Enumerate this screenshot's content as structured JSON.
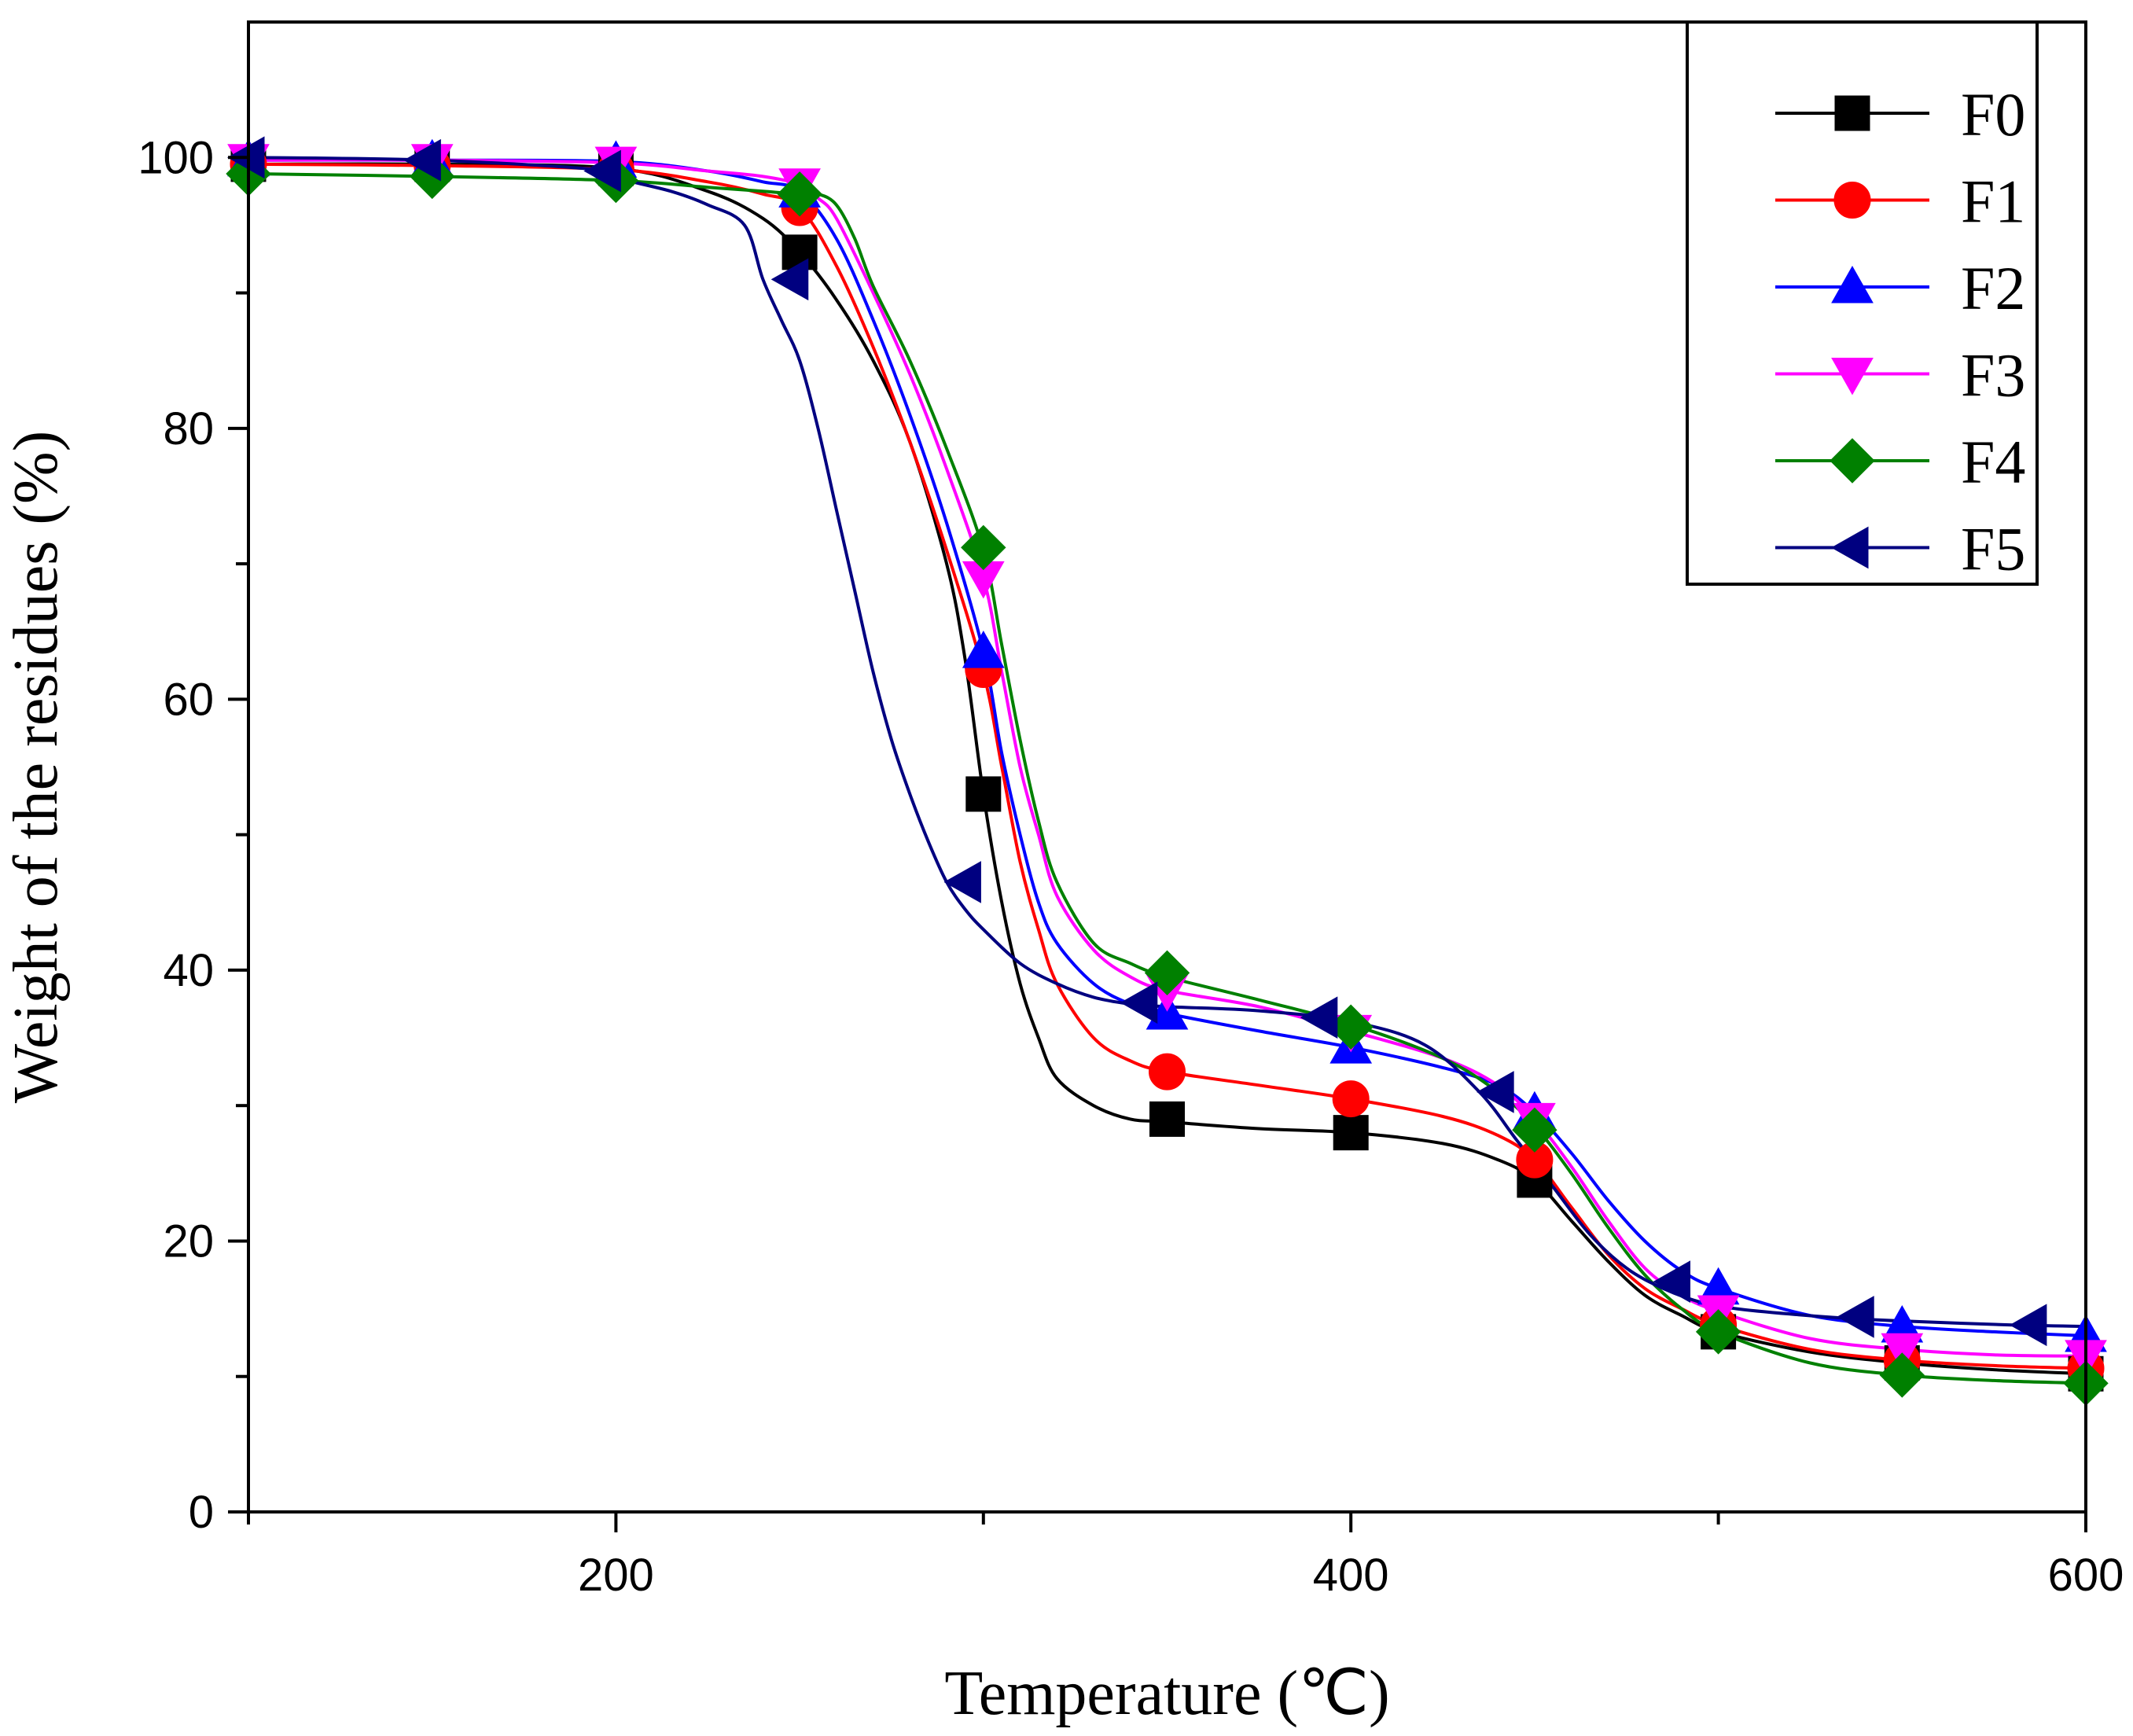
{
  "chart_data": {
    "type": "line",
    "title": "",
    "xlabel": "Temperature (℃)",
    "ylabel": "Weight of the residues (%)",
    "xlim": [
      100,
      600
    ],
    "ylim": [
      0,
      110
    ],
    "x_ticks": [
      200,
      400,
      600
    ],
    "x_minor_ticks": [
      100,
      300,
      500
    ],
    "y_ticks": [
      0,
      20,
      40,
      60,
      80,
      100
    ],
    "y_minor_ticks": [
      10,
      30,
      50,
      70,
      90
    ],
    "x_tick_labels": [
      "200",
      "400",
      "600"
    ],
    "y_tick_labels": [
      "0",
      "20",
      "40",
      "60",
      "80",
      "100"
    ],
    "legend_position": "top-right",
    "series": [
      {
        "name": "F0",
        "color": "#000000",
        "marker": "square",
        "x": [
          100,
          150,
          200,
          225,
          240,
          250,
          260,
          270,
          280,
          290,
          295,
          300,
          305,
          310,
          315,
          320,
          330,
          340,
          350,
          375,
          400,
          425,
          440,
          450,
          460,
          470,
          480,
          490,
          500,
          525,
          550,
          575,
          600
        ],
        "y": [
          99.5,
          99.5,
          99.2,
          97.5,
          95.5,
          93,
          89.5,
          85,
          79,
          70,
          63,
          53,
          45,
          39,
          35,
          32,
          30,
          29,
          28.8,
          28.3,
          28,
          27.2,
          26,
          24.5,
          21.5,
          18.5,
          16,
          14.5,
          13.3,
          11.8,
          11,
          10.5,
          10.2
        ],
        "marker_x": [
          100,
          150,
          200,
          250,
          300,
          350,
          400,
          450,
          500,
          550,
          600
        ],
        "marker_y": [
          99.5,
          99.5,
          99.2,
          93,
          53,
          29,
          28,
          24.5,
          13.3,
          11,
          10.2
        ]
      },
      {
        "name": "F1",
        "color": "#ff0000",
        "marker": "circle",
        "x": [
          100,
          150,
          200,
          225,
          240,
          250,
          260,
          270,
          280,
          290,
          300,
          305,
          310,
          315,
          320,
          330,
          340,
          350,
          375,
          400,
          425,
          440,
          450,
          460,
          470,
          480,
          490,
          500,
          525,
          550,
          575,
          600
        ],
        "y": [
          99.5,
          99.4,
          99.1,
          98.2,
          97.3,
          96.3,
          92,
          86,
          79,
          71,
          62,
          55,
          48,
          43,
          39,
          35,
          33.3,
          32.5,
          31.5,
          30.5,
          29.2,
          27.8,
          26,
          22.5,
          19,
          16.5,
          15,
          13.8,
          12,
          11.2,
          10.8,
          10.6
        ],
        "marker_x": [
          100,
          150,
          200,
          250,
          300,
          350,
          400,
          450,
          500,
          550,
          600
        ],
        "marker_y": [
          99.5,
          99.4,
          99.1,
          96.3,
          62.2,
          32.5,
          30.5,
          26,
          13.8,
          11.2,
          10.6
        ]
      },
      {
        "name": "F2",
        "color": "#0000ff",
        "marker": "triangle-up",
        "x": [
          100,
          150,
          200,
          225,
          240,
          250,
          260,
          270,
          280,
          290,
          300,
          305,
          310,
          315,
          320,
          330,
          340,
          350,
          375,
          400,
          425,
          440,
          450,
          460,
          470,
          480,
          490,
          500,
          525,
          550,
          575,
          600
        ],
        "y": [
          99.8,
          99.8,
          99.7,
          99,
          98.2,
          97.5,
          94,
          88,
          81,
          73,
          63.5,
          56,
          50,
          45,
          42,
          39,
          37.5,
          36.8,
          35.5,
          34.3,
          32.8,
          31.5,
          29.5,
          26.5,
          23,
          20,
          17.8,
          16.5,
          14.5,
          13.7,
          13.3,
          13
        ],
        "marker_x": [
          100,
          150,
          200,
          250,
          300,
          350,
          400,
          450,
          500,
          550,
          600
        ],
        "marker_y": [
          99.8,
          99.8,
          99.7,
          97.5,
          63.5,
          36.8,
          34.3,
          29.5,
          16.5,
          13.7,
          13
        ]
      },
      {
        "name": "F3",
        "color": "#ff00ff",
        "marker": "triangle-down",
        "x": [
          100,
          150,
          200,
          225,
          240,
          250,
          255,
          260,
          270,
          280,
          290,
          300,
          305,
          310,
          315,
          320,
          330,
          340,
          350,
          375,
          400,
          425,
          440,
          450,
          460,
          470,
          480,
          490,
          500,
          525,
          550,
          575,
          600
        ],
        "y": [
          99.8,
          99.8,
          99.6,
          99,
          98.6,
          98,
          97,
          95.5,
          90,
          84,
          77,
          69,
          62,
          55,
          50,
          45.5,
          41.5,
          39.5,
          38.5,
          37.3,
          35.5,
          33.5,
          31.5,
          29,
          25.5,
          21.5,
          18,
          16,
          14.8,
          12.8,
          12,
          11.6,
          11.5
        ],
        "marker_x": [
          100,
          150,
          200,
          250,
          300,
          350,
          400,
          450,
          500,
          550,
          600
        ],
        "marker_y": [
          99.8,
          99.8,
          99.6,
          98,
          69,
          38.5,
          35.5,
          29,
          14.8,
          12,
          11.5
        ]
      },
      {
        "name": "F4",
        "color": "#008000",
        "marker": "diamond",
        "x": [
          100,
          150,
          200,
          225,
          240,
          250,
          255,
          260,
          265,
          270,
          280,
          290,
          300,
          305,
          310,
          315,
          320,
          330,
          340,
          350,
          375,
          400,
          425,
          440,
          450,
          460,
          470,
          480,
          490,
          500,
          525,
          550,
          575,
          600
        ],
        "y": [
          98.8,
          98.6,
          98.3,
          97.8,
          97.5,
          97.3,
          97.3,
          96.5,
          94,
          90.5,
          85,
          78.5,
          71,
          64,
          57,
          51,
          46.5,
          42,
          40.5,
          39.5,
          37.8,
          36,
          33.5,
          31,
          28.5,
          25,
          21,
          17.5,
          15,
          13.3,
          11,
          10.1,
          9.7,
          9.5
        ],
        "marker_x": [
          100,
          150,
          200,
          250,
          300,
          350,
          400,
          450,
          500,
          550,
          600
        ],
        "marker_y": [
          98.8,
          98.6,
          98.3,
          97.3,
          71.2,
          39.8,
          35.8,
          28.2,
          13.3,
          10.1,
          9.5
        ]
      },
      {
        "name": "F5",
        "color": "#000080",
        "marker": "triangle-left",
        "x": [
          100,
          150,
          195,
          200,
          215,
          225,
          235,
          240,
          245,
          250,
          255,
          260,
          265,
          270,
          275,
          280,
          285,
          290,
          295,
          300,
          310,
          320,
          330,
          340,
          350,
          375,
          400,
          420,
          435,
          445,
          455,
          465,
          475,
          485,
          495,
          505,
          520,
          535,
          550,
          580,
          600
        ],
        "y": [
          100,
          99.8,
          99.1,
          98.5,
          97.5,
          96.5,
          95,
          91,
          88,
          85,
          80,
          74,
          68,
          62,
          57,
          53,
          49.5,
          46.5,
          44.5,
          43,
          40.5,
          39,
          38,
          37.5,
          37.3,
          37,
          36.2,
          34.5,
          31,
          27.5,
          24,
          20.5,
          18,
          16.5,
          15.5,
          15,
          14.6,
          14.3,
          14.1,
          13.8,
          13.7
        ],
        "marker_x": [
          100,
          148,
          197,
          248,
          295,
          343,
          392,
          440,
          488,
          538,
          585
        ],
        "marker_y": [
          100,
          99.8,
          99,
          91,
          46.5,
          37.6,
          36.5,
          31,
          17,
          14.4,
          13.8
        ]
      }
    ]
  }
}
